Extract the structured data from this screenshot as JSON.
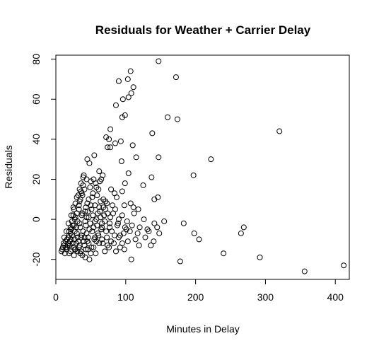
{
  "chart_data": {
    "type": "scatter",
    "title": "Residuals for Weather + Carrier Delay",
    "xlabel": "Minutes in Delay",
    "ylabel": "Residuals",
    "xlim": [
      0,
      420
    ],
    "ylim": [
      -30,
      82
    ],
    "xticks": [
      0,
      100,
      200,
      300,
      400
    ],
    "yticks": [
      -20,
      0,
      20,
      40,
      60,
      80
    ],
    "grid": false,
    "legend": "none",
    "marker": "open-circle",
    "points": [
      [
        147,
        79
      ],
      [
        107,
        74
      ],
      [
        103,
        70
      ],
      [
        90,
        69
      ],
      [
        172,
        71
      ],
      [
        111,
        66
      ],
      [
        108,
        63
      ],
      [
        104,
        61
      ],
      [
        96,
        60
      ],
      [
        86,
        57
      ],
      [
        174,
        50
      ],
      [
        160,
        51
      ],
      [
        99,
        52
      ],
      [
        95,
        51
      ],
      [
        78,
        45
      ],
      [
        138,
        43
      ],
      [
        320,
        44
      ],
      [
        72,
        41
      ],
      [
        76,
        40
      ],
      [
        85,
        38
      ],
      [
        93,
        39
      ],
      [
        110,
        37
      ],
      [
        78,
        36
      ],
      [
        74,
        36
      ],
      [
        147,
        31
      ],
      [
        115,
        31
      ],
      [
        94,
        29
      ],
      [
        222,
        30
      ],
      [
        45,
        30
      ],
      [
        48,
        28
      ],
      [
        55,
        32
      ],
      [
        62,
        24
      ],
      [
        104,
        23
      ],
      [
        137,
        21
      ],
      [
        197,
        22
      ],
      [
        40,
        22
      ],
      [
        44,
        20
      ],
      [
        50,
        19
      ],
      [
        54,
        20
      ],
      [
        57,
        18
      ],
      [
        65,
        20
      ],
      [
        99,
        18
      ],
      [
        125,
        17
      ],
      [
        36,
        14
      ],
      [
        41,
        15
      ],
      [
        49,
        16
      ],
      [
        61,
        15
      ],
      [
        79,
        15
      ],
      [
        84,
        13
      ],
      [
        95,
        14
      ],
      [
        30,
        11
      ],
      [
        38,
        12
      ],
      [
        52,
        11
      ],
      [
        59,
        12
      ],
      [
        68,
        10
      ],
      [
        87,
        11
      ],
      [
        141,
        10
      ],
      [
        146,
        11
      ],
      [
        34,
        9
      ],
      [
        45,
        8
      ],
      [
        56,
        7
      ],
      [
        64,
        9
      ],
      [
        73,
        8
      ],
      [
        98,
        7
      ],
      [
        107,
        8
      ],
      [
        111,
        6
      ],
      [
        25,
        6
      ],
      [
        33,
        5
      ],
      [
        42,
        4
      ],
      [
        51,
        5
      ],
      [
        63,
        4
      ],
      [
        71,
        5
      ],
      [
        82,
        3
      ],
      [
        95,
        2
      ],
      [
        112,
        3
      ],
      [
        118,
        5
      ],
      [
        22,
        2
      ],
      [
        28,
        1
      ],
      [
        37,
        2
      ],
      [
        47,
        1
      ],
      [
        58,
        0
      ],
      [
        69,
        2
      ],
      [
        78,
        1
      ],
      [
        90,
        0
      ],
      [
        102,
        -1
      ],
      [
        126,
        0
      ],
      [
        141,
        -2
      ],
      [
        155,
        -1
      ],
      [
        183,
        -2
      ],
      [
        18,
        -2
      ],
      [
        26,
        -3
      ],
      [
        34,
        -2
      ],
      [
        43,
        -3
      ],
      [
        54,
        -4
      ],
      [
        66,
        -2
      ],
      [
        77,
        -4
      ],
      [
        88,
        -3
      ],
      [
        99,
        -4
      ],
      [
        109,
        -3
      ],
      [
        120,
        -4
      ],
      [
        131,
        -5
      ],
      [
        145,
        -4
      ],
      [
        15,
        -6
      ],
      [
        22,
        -5
      ],
      [
        30,
        -7
      ],
      [
        39,
        -6
      ],
      [
        48,
        -5
      ],
      [
        60,
        -7
      ],
      [
        72,
        -6
      ],
      [
        84,
        -8
      ],
      [
        97,
        -7
      ],
      [
        106,
        -6
      ],
      [
        117,
        -7
      ],
      [
        133,
        -6
      ],
      [
        148,
        -7
      ],
      [
        198,
        -7
      ],
      [
        12,
        -9
      ],
      [
        19,
        -8
      ],
      [
        27,
        -10
      ],
      [
        36,
        -9
      ],
      [
        45,
        -11
      ],
      [
        56,
        -9
      ],
      [
        66,
        -10
      ],
      [
        79,
        -11
      ],
      [
        90,
        -9
      ],
      [
        103,
        -11
      ],
      [
        114,
        -10
      ],
      [
        128,
        -9
      ],
      [
        140,
        -11
      ],
      [
        205,
        -10
      ],
      [
        265,
        -7
      ],
      [
        269,
        -4
      ],
      [
        11,
        -12
      ],
      [
        17,
        -13
      ],
      [
        24,
        -12
      ],
      [
        32,
        -11
      ],
      [
        41,
        -13
      ],
      [
        51,
        -14
      ],
      [
        62,
        -12
      ],
      [
        74,
        -13
      ],
      [
        92,
        -14
      ],
      [
        119,
        -13
      ],
      [
        136,
        -13
      ],
      [
        10,
        -14
      ],
      [
        15,
        -15
      ],
      [
        21,
        -16
      ],
      [
        28,
        -15
      ],
      [
        36,
        -16
      ],
      [
        46,
        -15
      ],
      [
        57,
        -17
      ],
      [
        70,
        -16
      ],
      [
        8,
        -16
      ],
      [
        13,
        -17
      ],
      [
        19,
        -17
      ],
      [
        26,
        -18
      ],
      [
        35,
        -17
      ],
      [
        42,
        -19
      ],
      [
        48,
        -20
      ],
      [
        108,
        -20
      ],
      [
        178,
        -21
      ],
      [
        240,
        -17
      ],
      [
        292,
        -19
      ],
      [
        356,
        -26
      ],
      [
        412,
        -23
      ],
      [
        9,
        -15
      ],
      [
        14,
        -14
      ],
      [
        20,
        -11
      ],
      [
        23,
        -8
      ],
      [
        29,
        -4
      ],
      [
        31,
        -1
      ],
      [
        38,
        3
      ],
      [
        43,
        6
      ],
      [
        47,
        10
      ],
      [
        53,
        13
      ],
      [
        58,
        16
      ],
      [
        63,
        19
      ],
      [
        67,
        22
      ],
      [
        16,
        -10
      ],
      [
        18,
        -12
      ],
      [
        21,
        -7
      ],
      [
        24,
        -3
      ],
      [
        27,
        0
      ],
      [
        30,
        3
      ],
      [
        33,
        7
      ],
      [
        35,
        10
      ],
      [
        37,
        13
      ],
      [
        39,
        17
      ],
      [
        44,
        -7
      ],
      [
        46,
        -9
      ],
      [
        49,
        -2
      ],
      [
        52,
        -6
      ],
      [
        55,
        -10
      ],
      [
        59,
        -3
      ],
      [
        61,
        -8
      ],
      [
        65,
        -5
      ],
      [
        67,
        -12
      ],
      [
        70,
        -1
      ],
      [
        73,
        -9
      ],
      [
        76,
        -14
      ],
      [
        80,
        -6
      ],
      [
        83,
        -12
      ],
      [
        86,
        -16
      ],
      [
        89,
        -2
      ],
      [
        92,
        -8
      ],
      [
        95,
        -12
      ],
      [
        98,
        -15
      ],
      [
        101,
        -5
      ],
      [
        12,
        -13
      ],
      [
        14,
        -11
      ],
      [
        16,
        -14
      ],
      [
        18,
        -9
      ],
      [
        20,
        -13
      ],
      [
        22,
        -10
      ],
      [
        25,
        -14
      ],
      [
        27,
        -6
      ],
      [
        29,
        -12
      ],
      [
        31,
        -9
      ],
      [
        33,
        -14
      ],
      [
        35,
        -4
      ],
      [
        37,
        -8
      ],
      [
        40,
        -11
      ],
      [
        42,
        -1
      ],
      [
        44,
        1
      ],
      [
        46,
        4
      ],
      [
        50,
        7
      ],
      [
        53,
        2
      ],
      [
        56,
        -1
      ],
      [
        27,
        -15
      ],
      [
        31,
        -16
      ],
      [
        34,
        -13
      ],
      [
        38,
        -18
      ],
      [
        41,
        -9
      ],
      [
        43,
        -15
      ],
      [
        47,
        -12
      ],
      [
        50,
        -17
      ],
      [
        54,
        -14
      ],
      [
        58,
        -11
      ],
      [
        19,
        -6
      ],
      [
        21,
        -4
      ],
      [
        23,
        -1
      ],
      [
        25,
        2
      ],
      [
        26,
        5
      ],
      [
        28,
        8
      ],
      [
        32,
        12
      ],
      [
        34,
        15
      ],
      [
        36,
        18
      ],
      [
        39,
        21
      ],
      [
        60,
        3
      ],
      [
        62,
        6
      ],
      [
        64,
        1
      ],
      [
        66,
        -4
      ],
      [
        68,
        6
      ],
      [
        71,
        9
      ],
      [
        74,
        3
      ],
      [
        77,
        -2
      ],
      [
        81,
        7
      ],
      [
        85,
        5
      ]
    ]
  }
}
